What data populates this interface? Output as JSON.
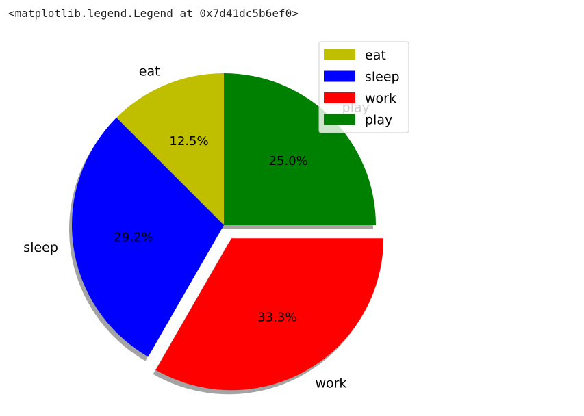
{
  "output_repr": "<matplotlib.legend.Legend at 0x7d41dc5b6ef0>",
  "chart_data": {
    "type": "pie",
    "categories": [
      "eat",
      "sleep",
      "work",
      "play"
    ],
    "values": [
      12.5,
      29.2,
      33.3,
      25.0
    ],
    "autopct_labels": [
      "12.5%",
      "29.2%",
      "33.3%",
      "25.0%"
    ],
    "colors": [
      "#bfbf00",
      "#0000ff",
      "#ff0000",
      "#008000"
    ],
    "explode": [
      0,
      0,
      0.1,
      0
    ],
    "shadow": true,
    "start_angle_deg": 90,
    "direction": "counterclockwise",
    "legend": {
      "placement": "upper right",
      "entries": [
        "eat",
        "sleep",
        "work",
        "play"
      ]
    }
  }
}
